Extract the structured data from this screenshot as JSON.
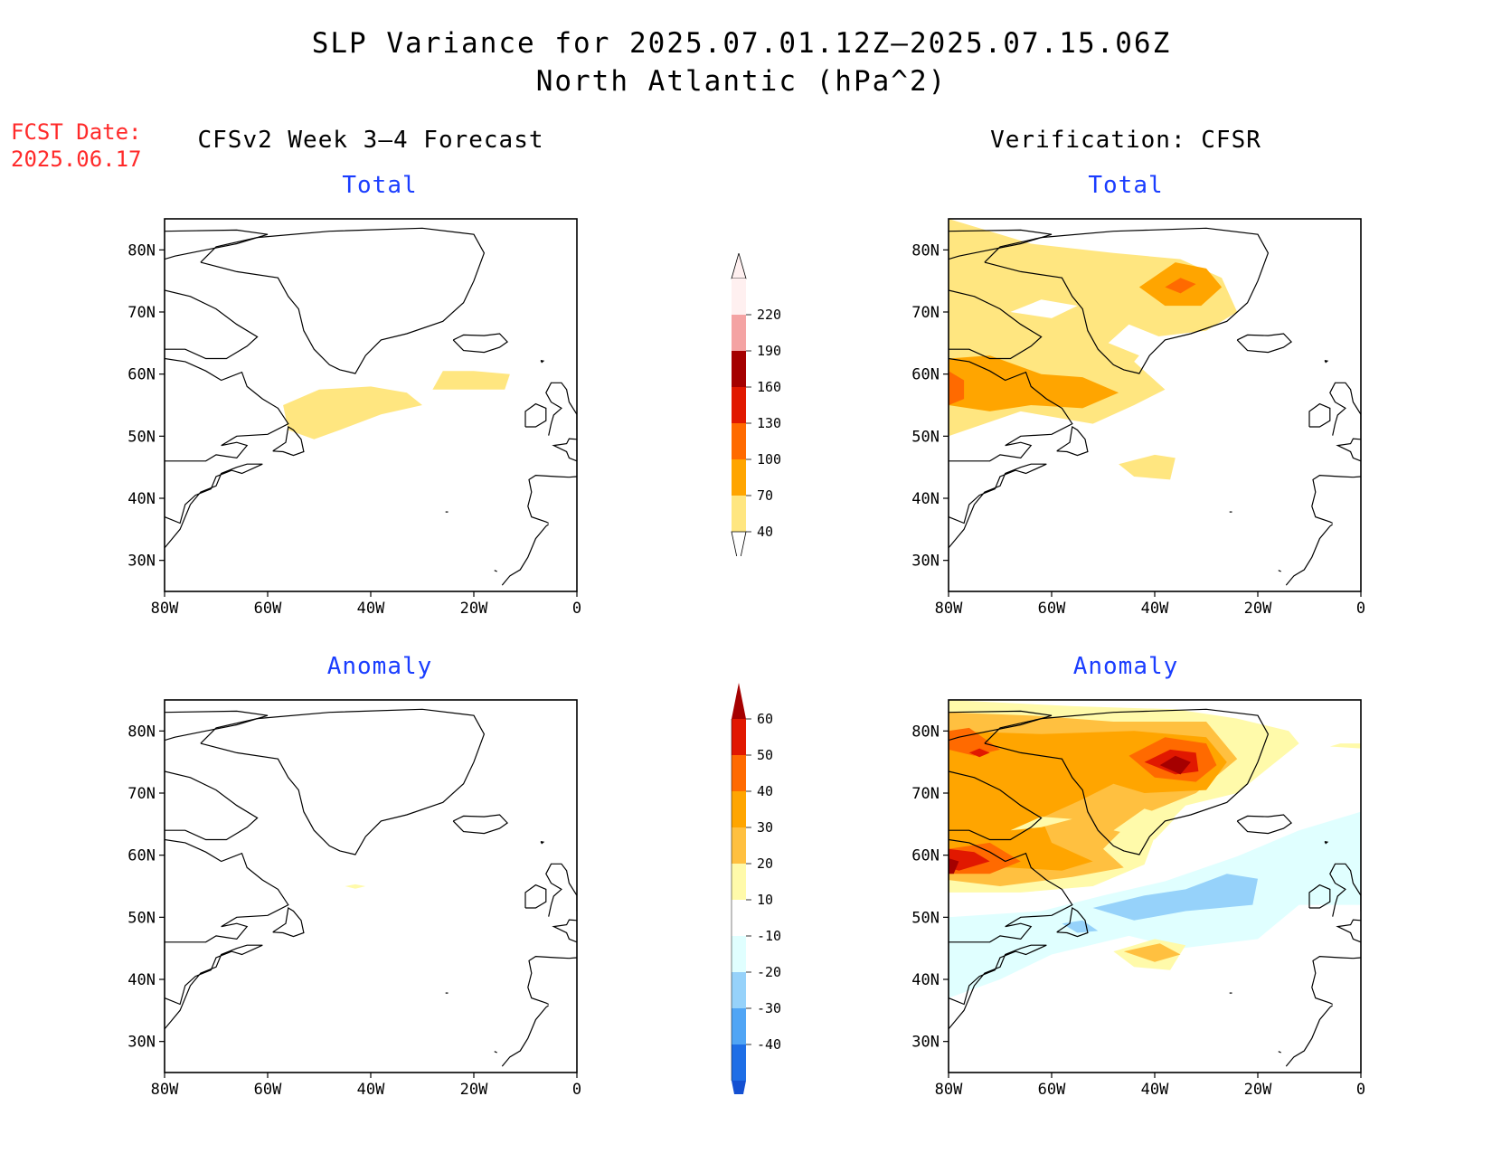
{
  "title_line1": "SLP Variance for 2025.07.01.12Z–2025.07.15.06Z",
  "title_line2": "North Atlantic (hPa^2)",
  "fcst_label": "FCST Date:",
  "fcst_date": "2025.06.17",
  "left_column_title": "CFSv2 Week 3–4 Forecast",
  "right_column_title": "Verification: CFSR",
  "panels": {
    "fcst_total": {
      "subtitle": "Total"
    },
    "fcst_anom": {
      "subtitle": "Anomaly"
    },
    "verif_total": {
      "subtitle": "Total"
    },
    "verif_anom": {
      "subtitle": "Anomaly"
    }
  },
  "lat_ticks": [
    "80N",
    "70N",
    "60N",
    "50N",
    "40N",
    "30N"
  ],
  "lon_ticks": [
    "80W",
    "60W",
    "40W",
    "20W",
    "0"
  ],
  "colorbar_total": {
    "labels": [
      "220",
      "190",
      "160",
      "130",
      "100",
      "70",
      "40"
    ],
    "colors": [
      "#fff0f0",
      "#f4a3a3",
      "#a50000",
      "#e11800",
      "#ff6a00",
      "#ffa500",
      "#ffe680"
    ]
  },
  "colorbar_anom": {
    "labels": [
      "60",
      "50",
      "40",
      "30",
      "20",
      "10",
      "-10",
      "-20",
      "-30",
      "-40"
    ],
    "colors": [
      "#a50000",
      "#e11800",
      "#ff6a00",
      "#ffa500",
      "#ffc040",
      "#fffaaa",
      "#ffffff",
      "#e0ffff",
      "#96d2fa",
      "#50a5f5",
      "#1e6ee6",
      "#1450d2"
    ]
  }
}
